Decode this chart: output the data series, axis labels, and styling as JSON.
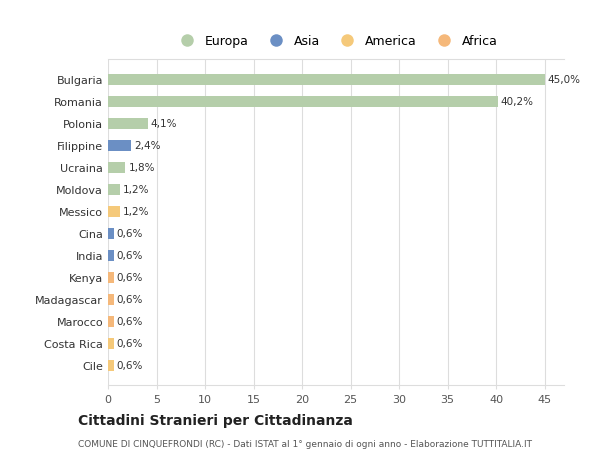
{
  "categories": [
    "Cile",
    "Costa Rica",
    "Marocco",
    "Madagascar",
    "Kenya",
    "India",
    "Cina",
    "Messico",
    "Moldova",
    "Ucraina",
    "Filippine",
    "Polonia",
    "Romania",
    "Bulgaria"
  ],
  "values": [
    0.6,
    0.6,
    0.6,
    0.6,
    0.6,
    0.6,
    0.6,
    1.2,
    1.2,
    1.8,
    2.4,
    4.1,
    40.2,
    45.0
  ],
  "labels": [
    "0,6%",
    "0,6%",
    "0,6%",
    "0,6%",
    "0,6%",
    "0,6%",
    "0,6%",
    "1,2%",
    "1,2%",
    "1,8%",
    "2,4%",
    "4,1%",
    "40,2%",
    "45,0%"
  ],
  "colors": [
    "#f5c97a",
    "#f5c97a",
    "#f5b87a",
    "#f5b87a",
    "#f5b87a",
    "#6b8fc4",
    "#6b8fc4",
    "#f5c97a",
    "#b5ceaa",
    "#b5ceaa",
    "#6b8fc4",
    "#b5ceaa",
    "#b5ceaa",
    "#b5ceaa"
  ],
  "legend": [
    {
      "label": "Europa",
      "color": "#b5ceaa"
    },
    {
      "label": "Asia",
      "color": "#6b8fc4"
    },
    {
      "label": "America",
      "color": "#f5c97a"
    },
    {
      "label": "Africa",
      "color": "#f5b87a"
    }
  ],
  "title": "Cittadini Stranieri per Cittadinanza",
  "subtitle": "COMUNE DI CINQUEFRONDI (RC) - Dati ISTAT al 1° gennaio di ogni anno - Elaborazione TUTTITALIA.IT",
  "xlim": [
    0,
    47
  ],
  "xticks": [
    0,
    5,
    10,
    15,
    20,
    25,
    30,
    35,
    40,
    45
  ],
  "background_color": "#ffffff",
  "grid_color": "#dddddd"
}
